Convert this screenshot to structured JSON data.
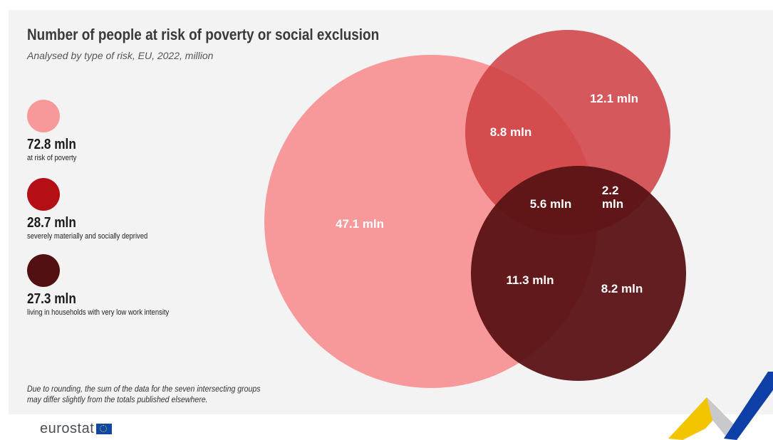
{
  "header": {
    "title": "Number of people at risk of poverty or social exclusion",
    "subtitle": "Analysed by type of risk, EU, 2022, million"
  },
  "legend": [
    {
      "value": "72.8 mln",
      "label": "at risk of poverty",
      "color": "#f7999b"
    },
    {
      "value": "28.7 mln",
      "label": "severely materially and socially deprived",
      "color": "#b30f14"
    },
    {
      "value": "27.3 mln",
      "label": "living in households with very low work intensity",
      "color": "#521012"
    }
  ],
  "footnote": {
    "line1": "Due to rounding, the sum of the data for the seven intersecting groups",
    "line2": "may differ slightly from the totals published elsewhere."
  },
  "brand": {
    "name": "eurostat",
    "flag_icon": "eu-flag-icon"
  },
  "colors": {
    "poverty": "#f7999b",
    "deprived": "#cf3f42",
    "work_intensity": "#5a1214",
    "card_bg": "#f3f3f4"
  },
  "chart_data": {
    "type": "venn",
    "title": "Number of people at risk of poverty or social exclusion",
    "subtitle": "Analysed by type of risk, EU, 2022, million",
    "unit": "mln",
    "sets": [
      {
        "name": "at risk of poverty",
        "total": 72.8
      },
      {
        "name": "severely materially and socially deprived",
        "total": 28.7
      },
      {
        "name": "living in households with very low work intensity",
        "total": 27.3
      }
    ],
    "regions": [
      {
        "sets": [
          "at risk of poverty"
        ],
        "value": 47.1,
        "label": "47.1 mln"
      },
      {
        "sets": [
          "severely materially and socially deprived"
        ],
        "value": 12.1,
        "label": "12.1 mln"
      },
      {
        "sets": [
          "living in households with very low work intensity"
        ],
        "value": 8.2,
        "label": "8.2 mln"
      },
      {
        "sets": [
          "at risk of poverty",
          "severely materially and socially deprived"
        ],
        "value": 8.8,
        "label": "8.8 mln"
      },
      {
        "sets": [
          "at risk of poverty",
          "living in households with very low work intensity"
        ],
        "value": 11.3,
        "label": "11.3 mln"
      },
      {
        "sets": [
          "severely materially and socially deprived",
          "living in households with very low work intensity"
        ],
        "value": 2.2,
        "label": "2.2 mln"
      },
      {
        "sets": [
          "at risk of poverty",
          "severely materially and socially deprived",
          "living in households with very low work intensity"
        ],
        "value": 5.6,
        "label": "5.6 mln"
      }
    ]
  }
}
